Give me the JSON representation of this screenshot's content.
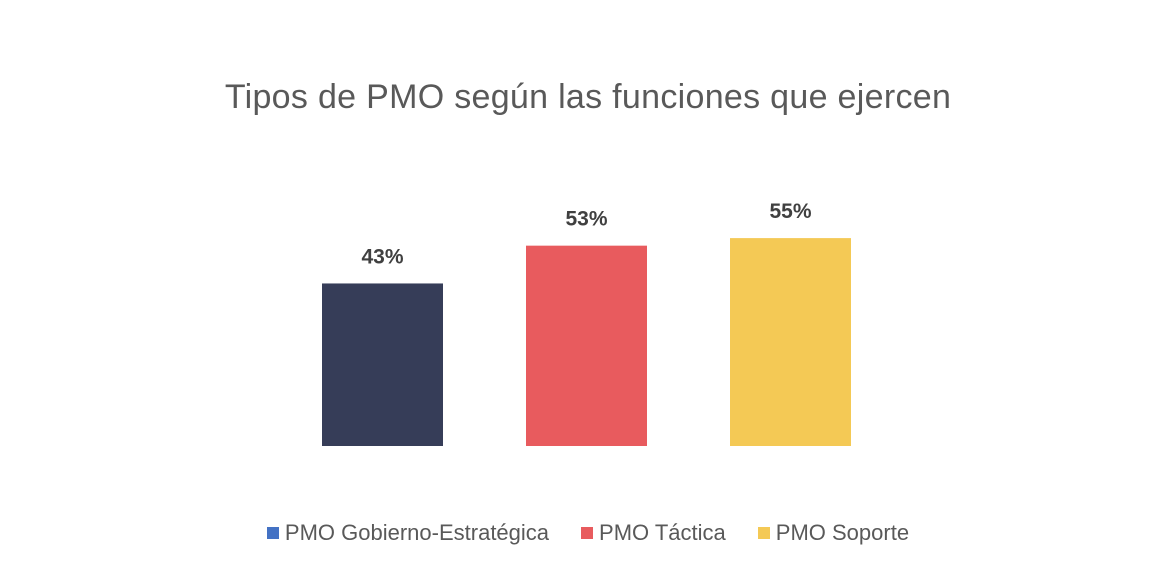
{
  "chart_data": {
    "type": "bar",
    "title": "Tipos de PMO según las funciones que ejercen",
    "categories": [
      "PMO Gobierno-Estratégica",
      "PMO Táctica",
      "PMO Soporte"
    ],
    "values": [
      43,
      53,
      55
    ],
    "data_labels": [
      "43%",
      "53%",
      "55%"
    ],
    "bar_colors": [
      "#363d58",
      "#e85b5e",
      "#f4c955"
    ],
    "legend": {
      "position": "bottom",
      "items": [
        {
          "label": "PMO Gobierno-Estratégica",
          "color": "#4472c4"
        },
        {
          "label": "PMO Táctica",
          "color": "#e85b5e"
        },
        {
          "label": "PMO Soporte",
          "color": "#f4c955"
        }
      ]
    },
    "ylim": [
      0,
      100
    ],
    "grid": false,
    "axes_visible": false
  }
}
